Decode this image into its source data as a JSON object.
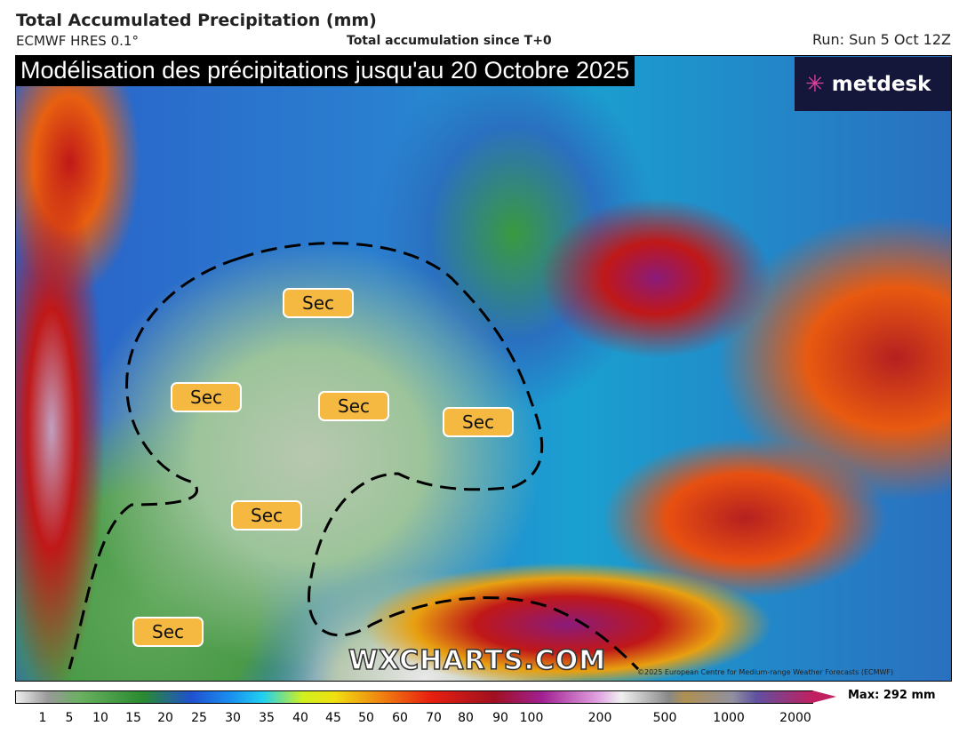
{
  "header": {
    "title": "Total Accumulated Precipitation (mm)",
    "model": "ECMWF HRES 0.1°",
    "subtitle": "Total accumulation since T+0",
    "run": "Run: Sun 5 Oct 12Z"
  },
  "banner": "Modélisation des précipitations jusqu'au 20 Octobre 2025",
  "logo": {
    "text": "metdesk",
    "icon": "metdesk-burst-icon"
  },
  "labels": [
    "Sec",
    "Sec",
    "Sec",
    "Sec",
    "Sec",
    "Sec"
  ],
  "watermark": "WXCHARTS.COM",
  "copyright": "©2025 European Centre for Medium-range Weather Forecasts (ECMWF)",
  "legend": {
    "ticks": [
      "1",
      "5",
      "10",
      "15",
      "20",
      "25",
      "30",
      "35",
      "40",
      "45",
      "50",
      "60",
      "70",
      "80",
      "90",
      "100",
      "200",
      "500",
      "1000",
      "2000"
    ],
    "max": "Max: 292 mm",
    "unit": "mm"
  }
}
